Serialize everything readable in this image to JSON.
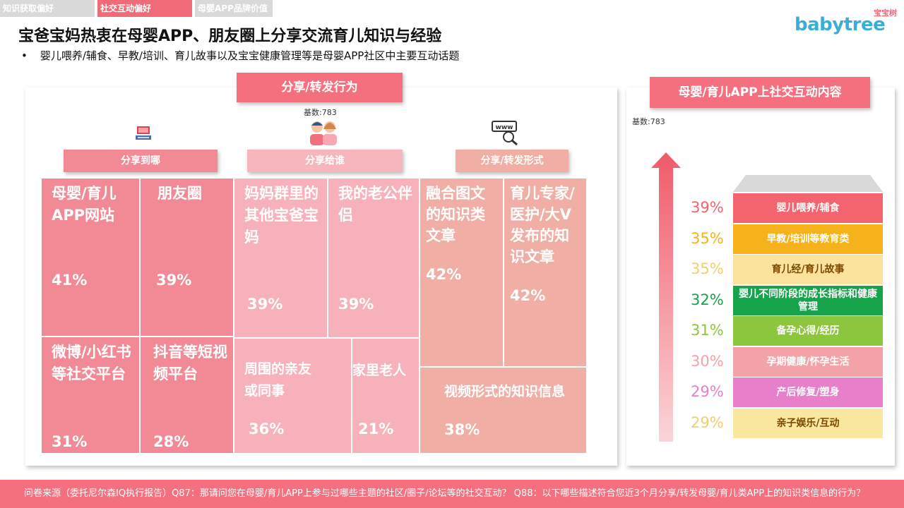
{
  "tabs": [
    "知识获取偏好",
    "社交互动偏好",
    "母婴APP品牌价值研究"
  ],
  "logo": {
    "cn": "宝宝树",
    "en": "babytree"
  },
  "title": "宝爸宝妈热衷在母婴APP、朋友圈上分享交流育儿知识与经验",
  "bullet": "婴儿喂养/辅食、早教/培训、育儿故事以及宝宝健康管理等是母婴APP社区中主要互动话题",
  "left": {
    "header": "分享/转发行为",
    "base": "基数:783",
    "categories": [
      "分享到哪",
      "分享给谁",
      "分享/转发形式"
    ]
  },
  "right": {
    "header": "母婴/育儿APP上社交互动内容",
    "base": "基数:783"
  },
  "footer": "问卷来源（委托尼尔森IQ执行报告）Q87：那请问您在母婴/育儿APP上参与过哪些主题的社区/圈子/论坛等的社交互动？ Q88：以下哪些描述符合您近3个月分享/转发母婴/育儿类APP上的知识类信息的行为？",
  "chart_data": [
    {
      "type": "treemap",
      "title": "分享/转发行为",
      "groups": [
        {
          "name": "分享到哪",
          "items": [
            {
              "label": "母婴/育儿APP网站",
              "value": 41,
              "display": "41%"
            },
            {
              "label": "朋友圈",
              "value": 39,
              "display": "39%"
            },
            {
              "label": "微博/小红书等社交平台",
              "value": 31,
              "display": "31%"
            },
            {
              "label": "抖音等短视频平台",
              "value": 28,
              "display": "28%"
            }
          ]
        },
        {
          "name": "分享给谁",
          "items": [
            {
              "label": "妈妈群里的其他宝爸宝妈",
              "value": 39,
              "display": "39%"
            },
            {
              "label": "我的老公伴侣",
              "value": 39,
              "display": "39%"
            },
            {
              "label": "周围的亲友或同事",
              "value": 36,
              "display": "36%"
            },
            {
              "label": "家里老人",
              "value": 21,
              "display": "21%"
            }
          ]
        },
        {
          "name": "分享/转发形式",
          "items": [
            {
              "label": "融合图文的知识类文章",
              "value": 42,
              "display": "42%"
            },
            {
              "label": "育儿专家/医护/大V发布的知识文章",
              "value": 42,
              "display": "42%"
            },
            {
              "label": "视频形式的知识信息",
              "value": 38,
              "display": "38%"
            }
          ]
        }
      ]
    },
    {
      "type": "bar",
      "title": "母婴/育儿APP上社交互动内容",
      "categories": [
        "婴儿喂养/辅食",
        "早教/培训等教育类",
        "育儿经/育儿故事",
        "婴儿不同阶段的成长指标和健康管理",
        "备孕心得/经历",
        "孕期健康/怀孕生活",
        "产后修复/塑身",
        "亲子娱乐/互动"
      ],
      "values": [
        39,
        35,
        35,
        32,
        31,
        30,
        29,
        29
      ],
      "labels": [
        "39%",
        "35%",
        "35%",
        "32%",
        "31%",
        "30%",
        "29%",
        "29%"
      ],
      "colors": [
        "#f4646f",
        "#f5b21b",
        "#fbe39e",
        "#16a34a",
        "#8cc63e",
        "#f3a3a7",
        "#e77fcb",
        "#fbe8a0"
      ]
    }
  ]
}
